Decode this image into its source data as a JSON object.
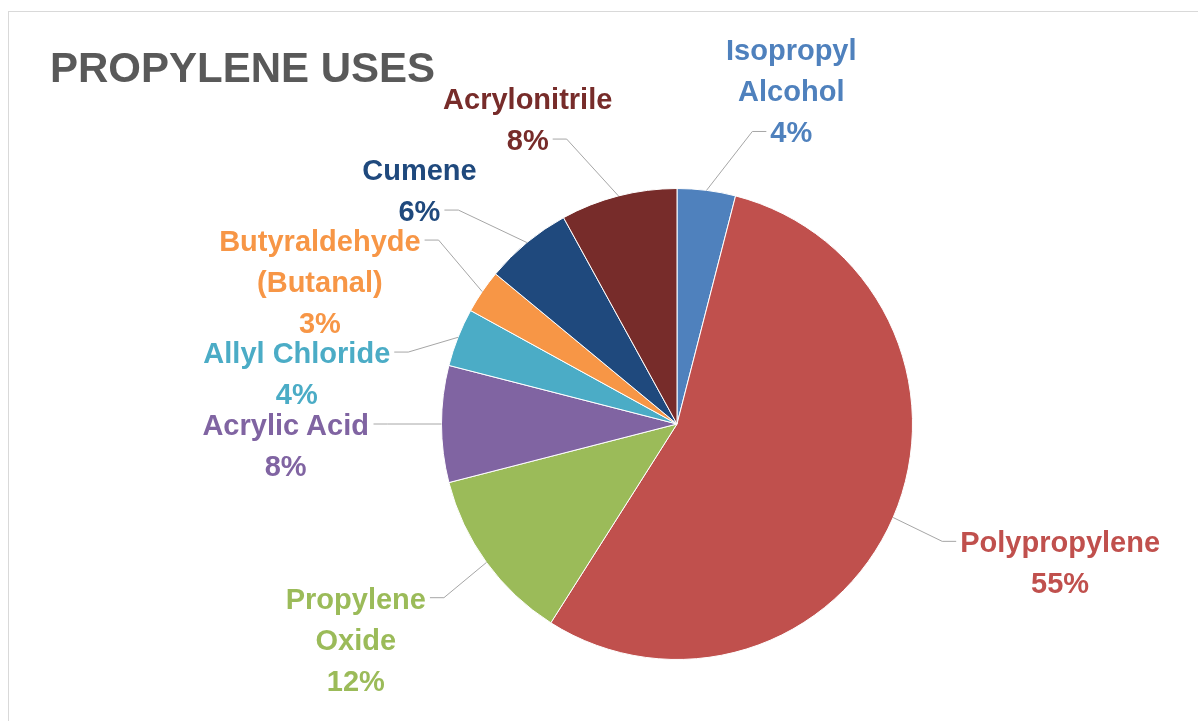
{
  "chart_data": {
    "type": "pie",
    "title": "PROPYLENE USES",
    "categories": [
      "Isopropyl Alcohol",
      "Polypropylene",
      "Propylene Oxide",
      "Acrylic Acid",
      "Allyl Chloride",
      "Butyraldehyde (Butanal)",
      "Cumene",
      "Acrylonitrile"
    ],
    "values": [
      4,
      55,
      12,
      8,
      4,
      3,
      6,
      8
    ],
    "value_labels": [
      "4%",
      "55%",
      "12%",
      "8%",
      "4%",
      "3%",
      "6%",
      "8%"
    ],
    "colors": [
      "#4f81bd",
      "#c0504d",
      "#9bbb59",
      "#8064a2",
      "#4bacc6",
      "#f79646",
      "#1f497d",
      "#772c2a"
    ]
  }
}
